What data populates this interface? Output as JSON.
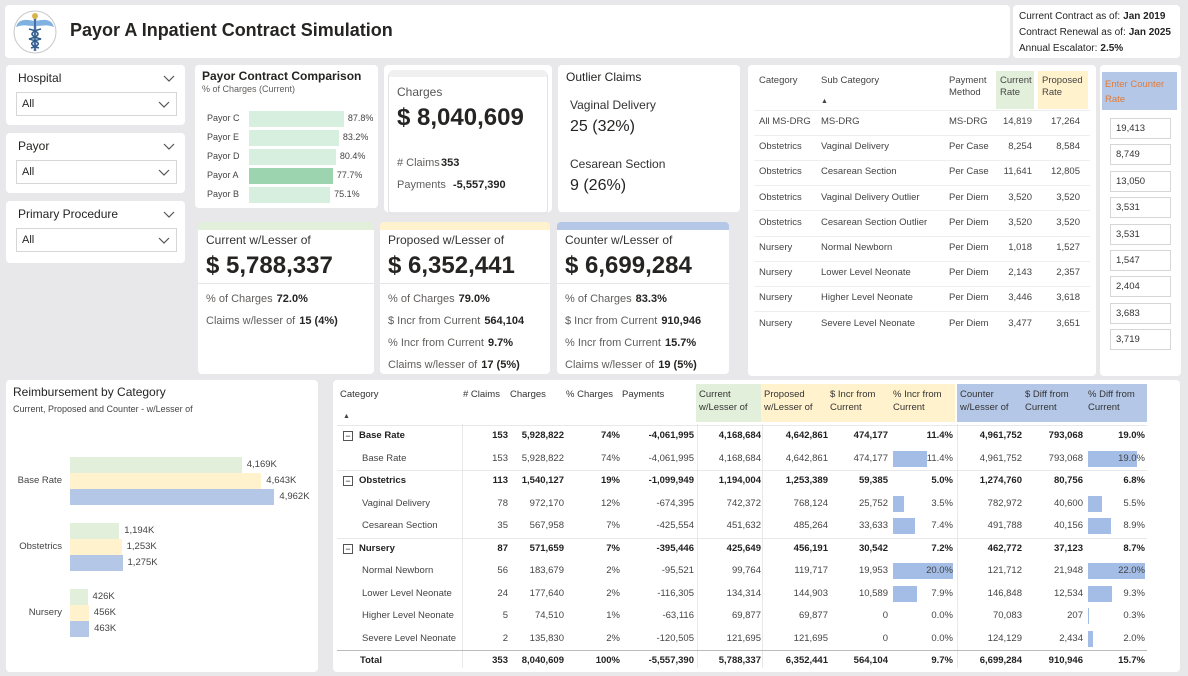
{
  "header": {
    "title": "Payor A Inpatient Contract Simulation",
    "info": [
      {
        "label": "Current Contract as of:",
        "value": "Jan 2019"
      },
      {
        "label": "Contract Renewal as of:",
        "value": "Jan 2025"
      },
      {
        "label": "Annual Escalator:",
        "value": "2.5%"
      }
    ]
  },
  "filters": [
    {
      "label": "Hospital",
      "value": "All"
    },
    {
      "label": "Payor",
      "value": "All"
    },
    {
      "label": "Primary Procedure",
      "value": "All"
    }
  ],
  "chart_data": [
    {
      "type": "bar",
      "orientation": "horizontal",
      "title": "Payor Contract Comparison",
      "subtitle": "% of Charges (Current)",
      "categories": [
        "Payor C",
        "Payor E",
        "Payor D",
        "Payor A",
        "Payor B"
      ],
      "values": [
        87.8,
        83.2,
        80.4,
        77.7,
        75.1
      ],
      "value_labels": [
        "87.8%",
        "83.2%",
        "80.4%",
        "77.7%",
        "75.1%"
      ],
      "colors": [
        "#d6efdf",
        "#d6efdf",
        "#d6efdf",
        "#9dd4b0",
        "#d6efdf"
      ],
      "xlim": [
        0,
        100
      ]
    },
    {
      "type": "bar",
      "orientation": "horizontal",
      "title": "Reimbursement by Category",
      "subtitle": "Current, Proposed and Counter - w/Lesser of",
      "categories": [
        "Base Rate",
        "Obstetrics",
        "Nursery"
      ],
      "series": [
        {
          "color": "#e2efda",
          "values": [
            4169,
            1194,
            426
          ],
          "value_labels": [
            "4,169K",
            "1,194K",
            "426K"
          ]
        },
        {
          "color": "#fff2cc",
          "values": [
            4643,
            1253,
            456
          ],
          "value_labels": [
            "4,643K",
            "1,253K",
            "456K"
          ]
        },
        {
          "color": "#b4c7e7",
          "values": [
            4962,
            1275,
            463
          ],
          "value_labels": [
            "4,962K",
            "1,275K",
            "463K"
          ]
        }
      ],
      "xlim": [
        0,
        5000
      ]
    }
  ],
  "charges": {
    "title": "Charges",
    "value": "$ 8,040,609",
    "rows": [
      {
        "label": "# Claims",
        "value": "353"
      },
      {
        "label": "Payments",
        "value": "-5,557,390"
      }
    ]
  },
  "outliers": {
    "title": "Outlier Claims",
    "items": [
      {
        "label": "Vaginal Delivery",
        "value": "25 (32%)"
      },
      {
        "label": "Cesarean Section",
        "value": "9 (26%)"
      }
    ]
  },
  "scenarios": [
    {
      "title": "Current w/Lesser of",
      "value": "$ 5,788,337",
      "color": "#e2efda",
      "rows": [
        {
          "label": "% of Charges",
          "value": "72.0%"
        },
        {
          "label": "Claims w/lesser of",
          "value": "15 (4%)"
        }
      ]
    },
    {
      "title": "Proposed w/Lesser of",
      "value": "$ 6,352,441",
      "color": "#fff2cc",
      "rows": [
        {
          "label": "% of Charges",
          "value": "79.0%"
        },
        {
          "label": "$ Incr from Current",
          "value": "564,104"
        },
        {
          "label": "% Incr from Current",
          "value": "9.7%"
        },
        {
          "label": "Claims w/lesser of",
          "value": "17 (5%)"
        }
      ]
    },
    {
      "title": "Counter w/Lesser of",
      "value": "$ 6,699,284",
      "color": "#b4c7e7",
      "rows": [
        {
          "label": "% of Charges",
          "value": "83.3%"
        },
        {
          "label": "$ Incr from Current",
          "value": "910,946"
        },
        {
          "label": "% Incr from Current",
          "value": "15.7%"
        },
        {
          "label": "Claims w/lesser of",
          "value": "19 (5%)"
        }
      ]
    }
  ],
  "rates": {
    "headers": [
      "Category",
      "Sub Category",
      "Payment Method",
      "Current Rate",
      "Proposed Rate"
    ],
    "rows": [
      [
        "All MS-DRG",
        "MS-DRG",
        "MS-DRG",
        "14,819",
        "17,264"
      ],
      [
        "Obstetrics",
        "Vaginal Delivery",
        "Per Case",
        "8,254",
        "8,584"
      ],
      [
        "Obstetrics",
        "Cesarean Section",
        "Per Case",
        "11,641",
        "12,805"
      ],
      [
        "Obstetrics",
        "Vaginal Delivery Outlier",
        "Per Diem",
        "3,520",
        "3,520"
      ],
      [
        "Obstetrics",
        "Cesarean Section Outlier",
        "Per Diem",
        "3,520",
        "3,520"
      ],
      [
        "Nursery",
        "Normal Newborn",
        "Per Diem",
        "1,018",
        "1,527"
      ],
      [
        "Nursery",
        "Lower Level Neonate",
        "Per Diem",
        "2,143",
        "2,357"
      ],
      [
        "Nursery",
        "Higher Level Neonate",
        "Per Diem",
        "3,446",
        "3,618"
      ],
      [
        "Nursery",
        "Severe Level Neonate",
        "Per Diem",
        "3,477",
        "3,651"
      ]
    ]
  },
  "counter": {
    "header": "Enter Counter Rate",
    "values": [
      "19,413",
      "8,749",
      "13,050",
      "3,531",
      "3,531",
      "1,547",
      "2,404",
      "3,683",
      "3,719"
    ]
  },
  "summary": {
    "headers": [
      "Category",
      "# Claims",
      "Charges",
      "% Charges",
      "Payments",
      "Current w/Lesser of",
      "Proposed w/Lesser of",
      "$ Incr from Current",
      "% Incr from Current",
      "Counter w/Lesser of",
      "$ Diff from Current",
      "% Diff from Current"
    ],
    "rows": [
      {
        "level": "group",
        "cells": [
          "Base Rate",
          "153",
          "5,928,822",
          "74%",
          "-4,061,995",
          "4,168,684",
          "4,642,861",
          "474,177",
          "11.4%",
          "4,961,752",
          "793,068",
          "19.0%"
        ]
      },
      {
        "level": "item",
        "cells": [
          "Base Rate",
          "153",
          "5,928,822",
          "74%",
          "-4,061,995",
          "4,168,684",
          "4,642,861",
          "474,177",
          "11.4%",
          "4,961,752",
          "793,068",
          "19.0%"
        ]
      },
      {
        "level": "group",
        "cells": [
          "Obstetrics",
          "113",
          "1,540,127",
          "19%",
          "-1,099,949",
          "1,194,004",
          "1,253,389",
          "59,385",
          "5.0%",
          "1,274,760",
          "80,756",
          "6.8%"
        ]
      },
      {
        "level": "item",
        "cells": [
          "Vaginal Delivery",
          "78",
          "972,170",
          "12%",
          "-674,395",
          "742,372",
          "768,124",
          "25,752",
          "3.5%",
          "782,972",
          "40,600",
          "5.5%"
        ]
      },
      {
        "level": "item",
        "cells": [
          "Cesarean Section",
          "35",
          "567,958",
          "7%",
          "-425,554",
          "451,632",
          "485,264",
          "33,633",
          "7.4%",
          "491,788",
          "40,156",
          "8.9%"
        ]
      },
      {
        "level": "group",
        "cells": [
          "Nursery",
          "87",
          "571,659",
          "7%",
          "-395,446",
          "425,649",
          "456,191",
          "30,542",
          "7.2%",
          "462,772",
          "37,123",
          "8.7%"
        ]
      },
      {
        "level": "item",
        "cells": [
          "Normal Newborn",
          "56",
          "183,679",
          "2%",
          "-95,521",
          "99,764",
          "119,717",
          "19,953",
          "20.0%",
          "121,712",
          "21,948",
          "22.0%"
        ]
      },
      {
        "level": "item",
        "cells": [
          "Lower Level Neonate",
          "24",
          "177,640",
          "2%",
          "-116,305",
          "134,314",
          "144,903",
          "10,589",
          "7.9%",
          "146,848",
          "12,534",
          "9.3%"
        ]
      },
      {
        "level": "item",
        "cells": [
          "Higher Level Neonate",
          "5",
          "74,510",
          "1%",
          "-63,116",
          "69,877",
          "69,877",
          "0",
          "0.0%",
          "70,083",
          "207",
          "0.3%"
        ]
      },
      {
        "level": "item",
        "cells": [
          "Severe Level Neonate",
          "2",
          "135,830",
          "2%",
          "-120,505",
          "121,695",
          "121,695",
          "0",
          "0.0%",
          "124,129",
          "2,434",
          "2.0%"
        ]
      },
      {
        "level": "total",
        "cells": [
          "Total",
          "353",
          "8,040,609",
          "100%",
          "-5,557,390",
          "5,788,337",
          "6,352,441",
          "564,104",
          "9.7%",
          "6,699,284",
          "910,946",
          "15.7%"
        ]
      }
    ]
  }
}
